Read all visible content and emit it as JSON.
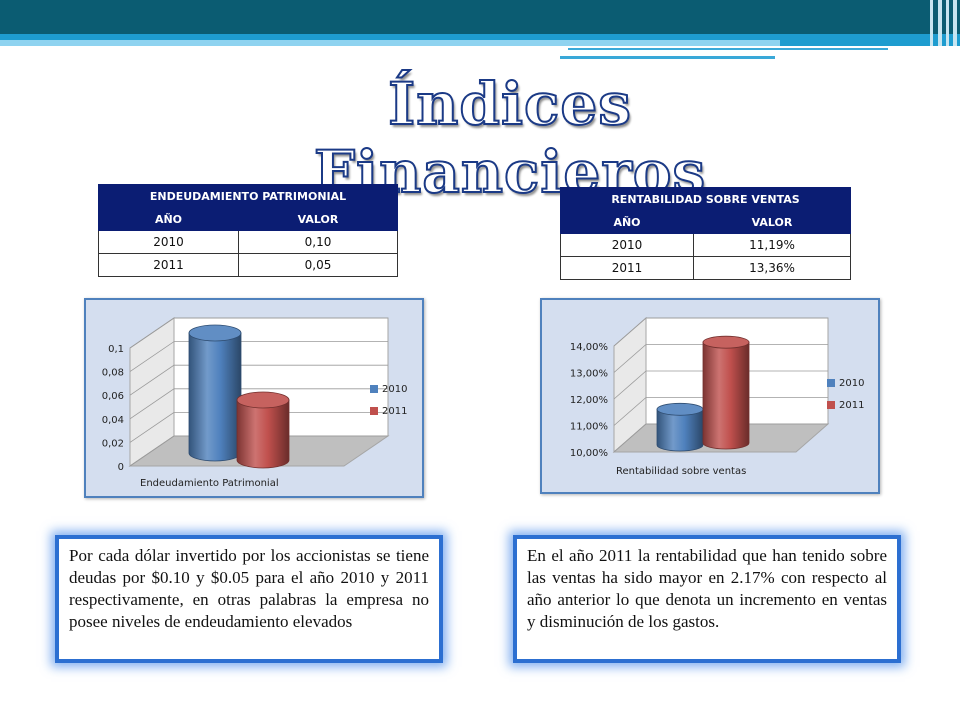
{
  "slide": {
    "title": "Índices Financieros"
  },
  "tables": {
    "endeudamiento": {
      "title": "ENDEUDAMIENTO PATRIMONIAL",
      "col_year": "AÑO",
      "col_value": "VALOR",
      "rows": [
        {
          "year": "2010",
          "value": "0,10"
        },
        {
          "year": "2011",
          "value": "0,05"
        }
      ]
    },
    "rentabilidad": {
      "title": "RENTABILIDAD SOBRE VENTAS",
      "col_year": "AÑO",
      "col_value": "VALOR",
      "rows": [
        {
          "year": "2010",
          "value": "11,19%"
        },
        {
          "year": "2011",
          "value": "13,36%"
        }
      ]
    }
  },
  "chart_data": [
    {
      "type": "bar",
      "categories": [
        "Endeudamiento Patrimonial"
      ],
      "series": [
        {
          "name": "2010",
          "values": [
            0.1
          ],
          "color": "#4f81bd"
        },
        {
          "name": "2011",
          "values": [
            0.05
          ],
          "color": "#c0504d"
        }
      ],
      "xlabel": "Endeudamiento Patrimonial",
      "ylim": [
        0,
        0.1
      ],
      "yticks": [
        0,
        0.02,
        0.04,
        0.06,
        0.08,
        0.1
      ],
      "ytick_labels": [
        "0",
        "0,02",
        "0,04",
        "0,06",
        "0,08",
        "0,1"
      ],
      "legend": "right",
      "legend_labels": [
        "2010",
        "2011"
      ]
    },
    {
      "type": "bar",
      "categories": [
        "Rentabilidad sobre ventas"
      ],
      "series": [
        {
          "name": "2010",
          "values": [
            0.1119
          ],
          "color": "#4f81bd"
        },
        {
          "name": "2011",
          "values": [
            0.1336
          ],
          "color": "#c0504d"
        }
      ],
      "xlabel": "Rentabilidad sobre ventas",
      "ylim": [
        0.1,
        0.14
      ],
      "yticks": [
        0.1,
        0.11,
        0.12,
        0.13,
        0.14
      ],
      "ytick_labels": [
        "10,00%",
        "11,00%",
        "12,00%",
        "13,00%",
        "14,00%"
      ],
      "legend": "right",
      "legend_labels": [
        "2010",
        "2011"
      ]
    }
  ],
  "textboxes": {
    "left": "Por cada dólar invertido por los accionistas se tiene deudas por $0.10 y $0.05 para el año 2010 y 2011 respectivamente, en otras palabras la empresa no posee niveles de endeudamiento elevados",
    "right": "En el año 2011 la rentabilidad que han tenido sobre las ventas ha sido mayor en 2.17% con respecto al año anterior lo que denota un incremento en ventas y disminución de los gastos."
  }
}
